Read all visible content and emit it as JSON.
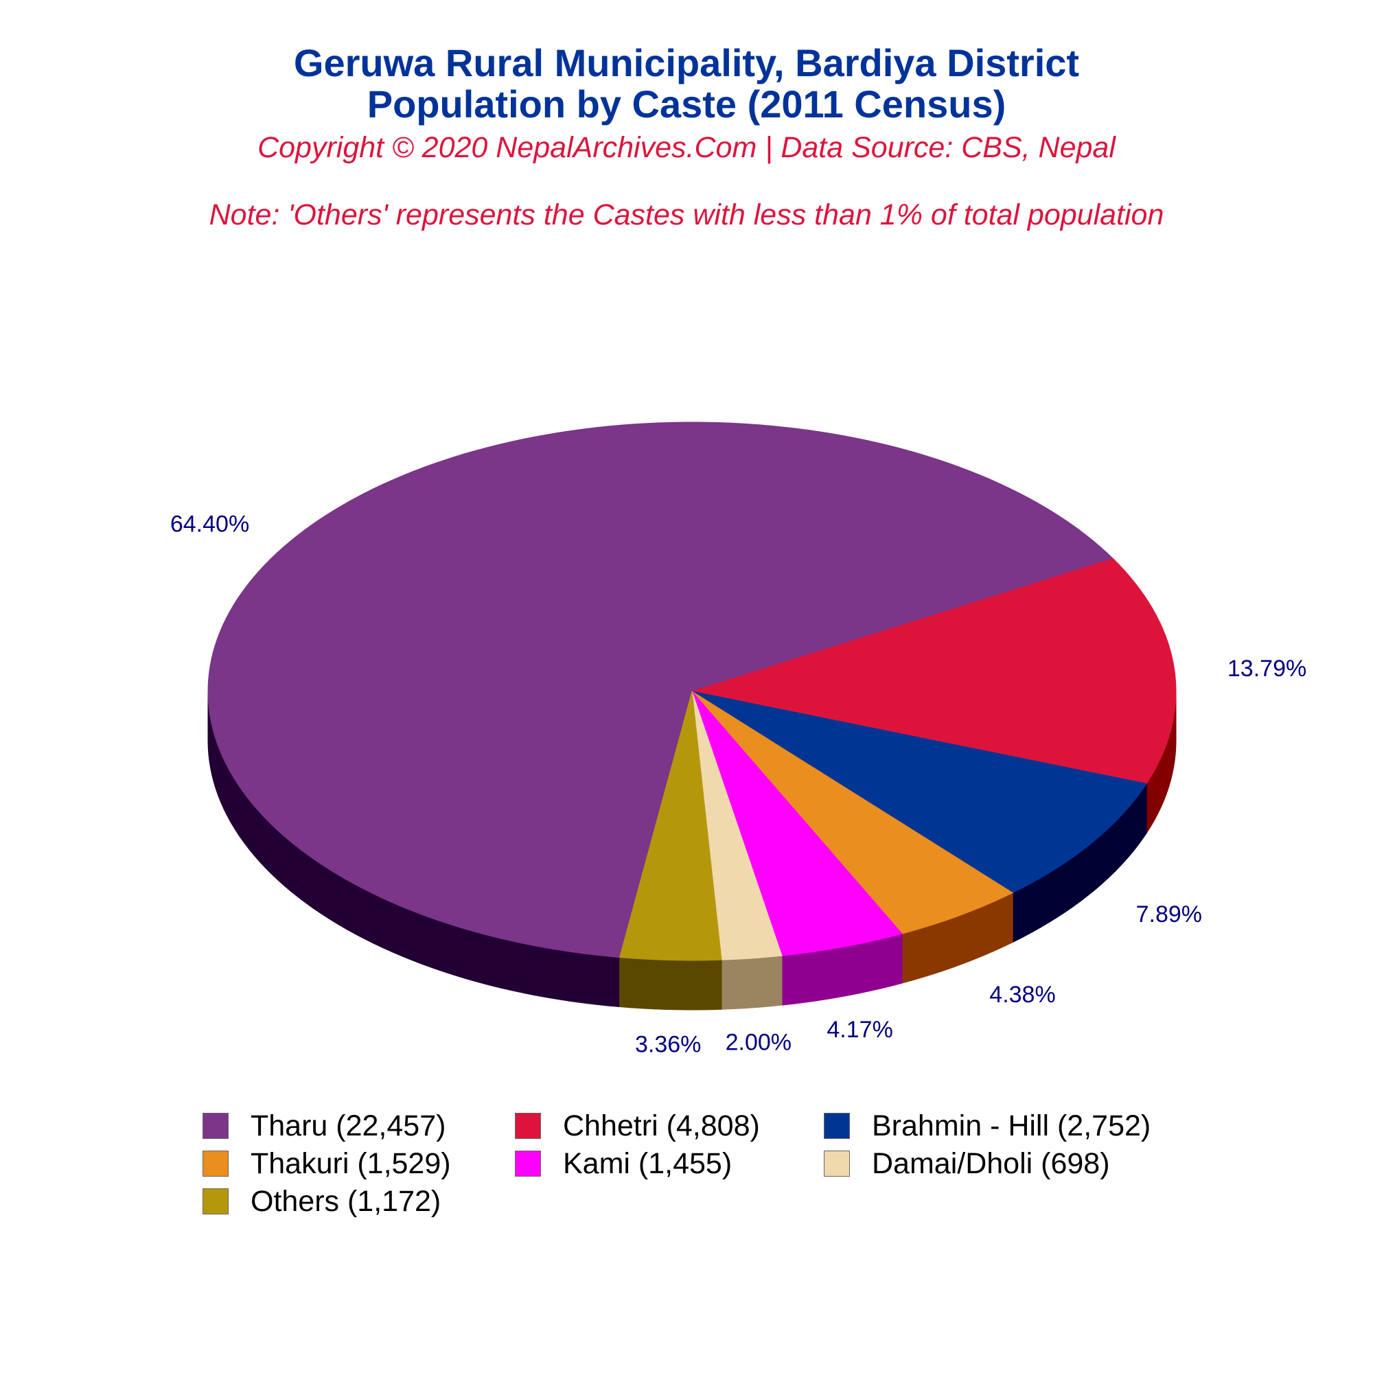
{
  "title_lines": [
    "Geruwa Rural Municipality, Bardiya District",
    "Population by Caste (2011 Census)"
  ],
  "copyright": "Copyright © 2020 NepalArchives.Com | Data Source: CBS, Nepal",
  "note": "Note: 'Others' represents the Castes with less than 1% of total population",
  "chart_data": {
    "type": "pie",
    "style": "3d",
    "legend_position": "bottom",
    "slices": [
      {
        "label": "Tharu (22,457)",
        "value": 22457,
        "percent": "64.40%",
        "color": "#7b3589",
        "side_color": "#230033"
      },
      {
        "label": "Chhetri (4,808)",
        "value": 4808,
        "percent": "13.79%",
        "color": "#dc143c",
        "side_color": "#830000"
      },
      {
        "label": "Brahmin - Hill (2,752)",
        "value": 2752,
        "percent": "7.89%",
        "color": "#003594",
        "side_color": "#000033"
      },
      {
        "label": "Thakuri (1,529)",
        "value": 1529,
        "percent": "4.38%",
        "color": "#e98e1f",
        "side_color": "#8a3800"
      },
      {
        "label": "Kami (1,455)",
        "value": 1455,
        "percent": "4.17%",
        "color": "#ff00ff",
        "side_color": "#900090"
      },
      {
        "label": "Damai/Dholi (698)",
        "value": 698,
        "percent": "2.00%",
        "color": "#efd9ad",
        "side_color": "#9a8560"
      },
      {
        "label": "Others (1,172)",
        "value": 1172,
        "percent": "3.36%",
        "color": "#b5970b",
        "side_color": "#5a4800"
      }
    ],
    "percent_label_color": "#000080"
  }
}
